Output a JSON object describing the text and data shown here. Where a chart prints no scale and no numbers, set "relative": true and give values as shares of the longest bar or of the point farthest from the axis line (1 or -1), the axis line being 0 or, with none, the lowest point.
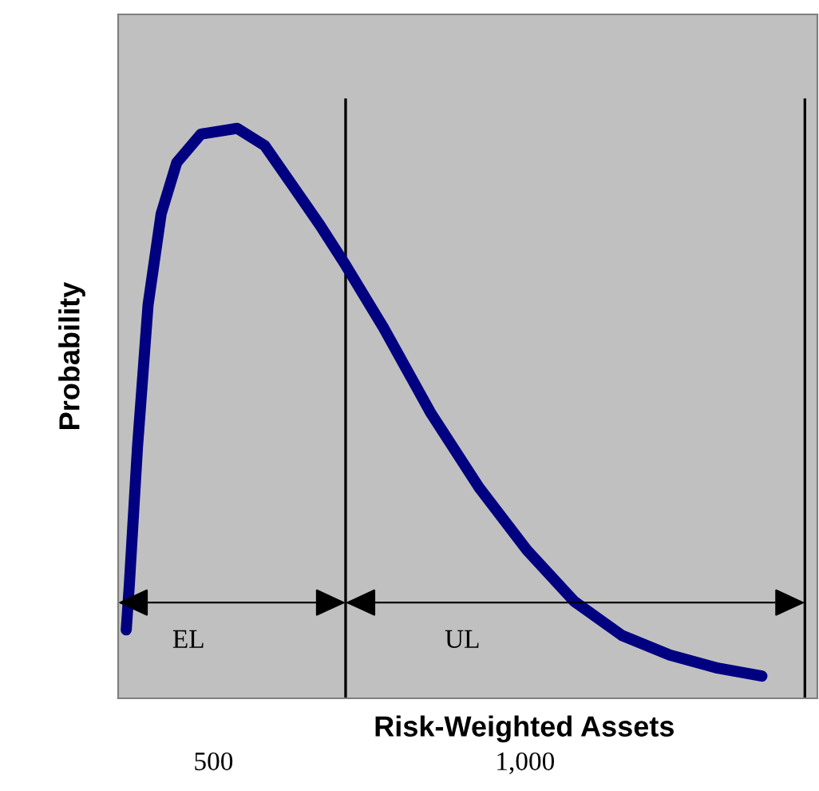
{
  "chart_data": {
    "type": "line",
    "relative": true,
    "xlabel": "Risk-Weighted Assets",
    "ylabel": "Probability",
    "xlim": [
      347,
      1469
    ],
    "xticks": [
      500,
      {
        "value": 1000,
        "label": "1,000"
      }
    ],
    "series": [
      {
        "color": "#000080",
        "x": [
          360,
          365,
          378,
          395,
          416,
          441,
          480,
          538,
          582,
          633,
          671,
          712,
          773,
          849,
          926,
          1003,
          1079,
          1156,
          1232,
          1309,
          1380
        ],
        "values": [
          0.12,
          0.2,
          0.44,
          0.69,
          0.85,
          0.94,
          0.99,
          1.0,
          0.97,
          0.89,
          0.83,
          0.76,
          0.65,
          0.5,
          0.37,
          0.26,
          0.17,
          0.11,
          0.076,
          0.053,
          0.039
        ]
      }
    ],
    "ref_lines": [
      {
        "axis": "x",
        "value": 712,
        "color": "#000000"
      },
      {
        "axis": "x",
        "value": 1449,
        "color": "#000000"
      }
    ],
    "annotations": [
      "EL",
      "UL"
    ],
    "grid": false,
    "legend": false,
    "marker": "none",
    "line_style": "solid"
  }
}
